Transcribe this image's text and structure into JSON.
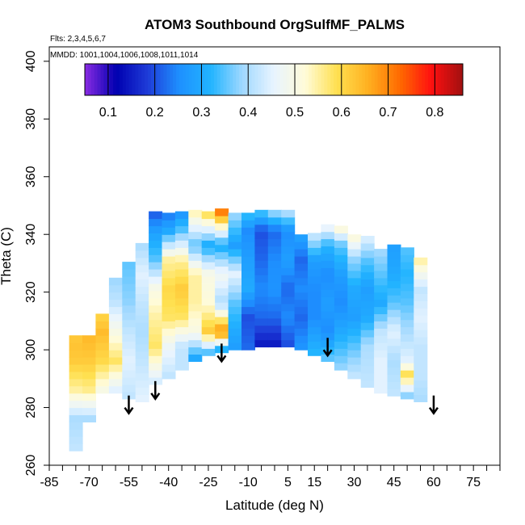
{
  "chart_data": {
    "type": "heatmap",
    "title": "ATOM3 Southbound OrgSulfMF_PALMS",
    "flights_note": "Flts: 2,3,4,5,6,7",
    "dates_note": "MMDD: 1001,1004,1006,1008,1011,1014",
    "xlabel": "Latitude (deg N)",
    "ylabel": "Theta (C)",
    "xlim": [
      -85,
      85
    ],
    "ylim": [
      260,
      405
    ],
    "x_ticks": [
      -85,
      -70,
      -55,
      -40,
      -25,
      -10,
      5,
      15,
      30,
      45,
      60,
      75
    ],
    "x_tick_labels": [
      "-85",
      "-70",
      "-55",
      "-40",
      "-25",
      "-10",
      "5",
      "15",
      "30",
      "45",
      "60",
      "75"
    ],
    "y_ticks": [
      260,
      280,
      300,
      320,
      340,
      360,
      380,
      400
    ],
    "y_tick_labels": [
      "260",
      "280",
      "300",
      "320",
      "340",
      "360",
      "380",
      "400"
    ],
    "colorbar": {
      "range": [
        0.05,
        0.86
      ],
      "ticks": [
        0.1,
        0.2,
        0.3,
        0.4,
        0.5,
        0.6,
        0.7,
        0.8
      ],
      "tick_labels": [
        "0.1",
        "0.2",
        "0.3",
        "0.4",
        "0.5",
        "0.6",
        "0.7",
        "0.8"
      ],
      "colors": [
        "#8a2be2",
        "#0000b0",
        "#1e3cd8",
        "#1e90ff",
        "#22b4ff",
        "#9fd8ff",
        "#e8f4ff",
        "#fffbd8",
        "#ffe050",
        "#ffb020",
        "#ff6a00",
        "#ff1010",
        "#a01010"
      ]
    },
    "series": [
      {
        "lat": -75,
        "theta": [
          265,
          275,
          285,
          295,
          300,
          305
        ],
        "values": [
          0.42,
          0.4,
          0.55,
          0.62,
          0.63,
          0.62
        ]
      },
      {
        "lat": -70,
        "theta": [
          275,
          285,
          295,
          305
        ],
        "values": [
          0.4,
          0.56,
          0.62,
          0.65
        ]
      },
      {
        "lat": -65,
        "theta": [
          285,
          295,
          305,
          312
        ],
        "values": [
          0.5,
          0.6,
          0.64,
          0.6
        ]
      },
      {
        "lat": -60,
        "theta": [
          285,
          295,
          305,
          315,
          325
        ],
        "values": [
          0.45,
          0.58,
          0.5,
          0.42,
          0.38
        ]
      },
      {
        "lat": -55,
        "theta": [
          283,
          295,
          305,
          315,
          325,
          330
        ],
        "values": [
          0.42,
          0.45,
          0.42,
          0.38,
          0.36,
          0.35
        ]
      },
      {
        "lat": -50,
        "theta": [
          282,
          295,
          305,
          315,
          325,
          335
        ],
        "values": [
          0.45,
          0.42,
          0.4,
          0.42,
          0.45,
          0.4
        ]
      },
      {
        "lat": -45,
        "theta": [
          288,
          300,
          310,
          320,
          330,
          340,
          347
        ],
        "values": [
          0.44,
          0.58,
          0.55,
          0.5,
          0.35,
          0.28,
          0.2
        ]
      },
      {
        "lat": -40,
        "theta": [
          290,
          300,
          310,
          320,
          330,
          340,
          347
        ],
        "values": [
          0.42,
          0.47,
          0.58,
          0.6,
          0.55,
          0.3,
          0.22
        ]
      },
      {
        "lat": -35,
        "theta": [
          293,
          300,
          310,
          320,
          330,
          340,
          347
        ],
        "values": [
          0.42,
          0.42,
          0.58,
          0.62,
          0.55,
          0.35,
          0.25
        ]
      },
      {
        "lat": -30,
        "theta": [
          296,
          305,
          315,
          325,
          335,
          347
        ],
        "values": [
          0.3,
          0.5,
          0.55,
          0.55,
          0.35,
          0.55
        ]
      },
      {
        "lat": -25,
        "theta": [
          298,
          305,
          315,
          325,
          335,
          347
        ],
        "values": [
          0.35,
          0.62,
          0.52,
          0.5,
          0.3,
          0.62
        ]
      },
      {
        "lat": -20,
        "theta": [
          299,
          305,
          315,
          325,
          335,
          347
        ],
        "values": [
          0.32,
          0.7,
          0.4,
          0.48,
          0.3,
          0.72
        ]
      },
      {
        "lat": -15,
        "theta": [
          300,
          305,
          315,
          325,
          335,
          347
        ],
        "values": [
          0.28,
          0.3,
          0.35,
          0.45,
          0.28,
          0.4
        ]
      },
      {
        "lat": -10,
        "theta": [
          300,
          310,
          320,
          330,
          340,
          347
        ],
        "values": [
          0.22,
          0.2,
          0.3,
          0.28,
          0.25,
          0.35
        ]
      },
      {
        "lat": -5,
        "theta": [
          301,
          310,
          320,
          330,
          340,
          347
        ],
        "values": [
          0.15,
          0.22,
          0.25,
          0.22,
          0.2,
          0.35
        ]
      },
      {
        "lat": 0,
        "theta": [
          301,
          310,
          320,
          330,
          340,
          347
        ],
        "values": [
          0.15,
          0.22,
          0.26,
          0.25,
          0.22,
          0.4
        ]
      },
      {
        "lat": 5,
        "theta": [
          301,
          310,
          320,
          330,
          340,
          347
        ],
        "values": [
          0.2,
          0.25,
          0.22,
          0.28,
          0.25,
          0.42
        ]
      },
      {
        "lat": 10,
        "theta": [
          300,
          310,
          320,
          330,
          340
        ],
        "values": [
          0.26,
          0.22,
          0.25,
          0.22,
          0.3
        ]
      },
      {
        "lat": 15,
        "theta": [
          298,
          310,
          320,
          330,
          340
        ],
        "values": [
          0.32,
          0.25,
          0.25,
          0.28,
          0.45
        ]
      },
      {
        "lat": 20,
        "theta": [
          296,
          305,
          315,
          325,
          335,
          342
        ],
        "values": [
          0.35,
          0.25,
          0.28,
          0.25,
          0.32,
          0.48
        ]
      },
      {
        "lat": 25,
        "theta": [
          293,
          305,
          315,
          325,
          335,
          342
        ],
        "values": [
          0.38,
          0.3,
          0.25,
          0.28,
          0.35,
          0.55
        ]
      },
      {
        "lat": 30,
        "theta": [
          290,
          300,
          310,
          320,
          330,
          340
        ],
        "values": [
          0.42,
          0.35,
          0.28,
          0.3,
          0.38,
          0.55
        ]
      },
      {
        "lat": 35,
        "theta": [
          287,
          300,
          310,
          320,
          330,
          338
        ],
        "values": [
          0.42,
          0.4,
          0.3,
          0.28,
          0.35,
          0.45
        ]
      },
      {
        "lat": 40,
        "theta": [
          285,
          295,
          305,
          315,
          325,
          335
        ],
        "values": [
          0.45,
          0.45,
          0.42,
          0.3,
          0.35,
          0.4
        ]
      },
      {
        "lat": 45,
        "theta": [
          284,
          295,
          305,
          315,
          325,
          335
        ],
        "values": [
          0.42,
          0.4,
          0.45,
          0.35,
          0.3,
          0.28
        ]
      },
      {
        "lat": 50,
        "theta": [
          283,
          290,
          295,
          305,
          315,
          325,
          335
        ],
        "values": [
          0.38,
          0.6,
          0.45,
          0.4,
          0.35,
          0.32,
          0.35
        ]
      },
      {
        "lat": 55,
        "theta": [
          282,
          290,
          300,
          310,
          320,
          330
        ],
        "values": [
          0.4,
          0.42,
          0.42,
          0.45,
          0.42,
          0.55
        ]
      }
    ],
    "arrows_lat": [
      -55,
      -45,
      -20,
      20,
      60
    ],
    "arrows_theta": [
      278,
      283,
      296,
      298,
      278
    ]
  }
}
